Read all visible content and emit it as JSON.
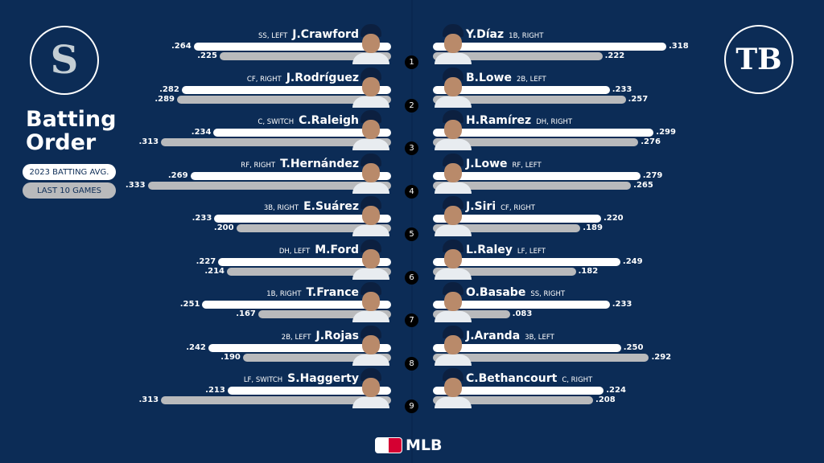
{
  "legend": {
    "season": "2023 BATTING AVG.",
    "recent": "LAST 10 GAMES"
  },
  "title": [
    "Batting",
    "Order"
  ],
  "footer": "MLB",
  "logos": {
    "home": "Seattle Mariners S logo",
    "away": "TB"
  },
  "colors": {
    "background": "#0c2c56",
    "season_bar": "#ffffff",
    "recent_bar": "#b9babc"
  },
  "chart_data": {
    "type": "bar",
    "series_labels": [
      "2023 BATTING AVG.",
      "LAST 10 GAMES"
    ],
    "home": [
      {
        "order": "1",
        "name": "J.Crawford",
        "pos": "SS, LEFT",
        "avg": ".264",
        "last10": ".225"
      },
      {
        "order": "2",
        "name": "J.Rodríguez",
        "pos": "CF, RIGHT",
        "avg": ".282",
        "last10": ".289"
      },
      {
        "order": "3",
        "name": "C.Raleigh",
        "pos": "C, SWITCH",
        "avg": ".234",
        "last10": ".313"
      },
      {
        "order": "4",
        "name": "T.Hernández",
        "pos": "RF, RIGHT",
        "avg": ".269",
        "last10": ".333"
      },
      {
        "order": "5",
        "name": "E.Suárez",
        "pos": "3B, RIGHT",
        "avg": ".233",
        "last10": ".200"
      },
      {
        "order": "6",
        "name": "M.Ford",
        "pos": "DH, LEFT",
        "avg": ".227",
        "last10": ".214"
      },
      {
        "order": "7",
        "name": "T.France",
        "pos": "1B, RIGHT",
        "avg": ".251",
        "last10": ".167"
      },
      {
        "order": "8",
        "name": "J.Rojas",
        "pos": "2B, LEFT",
        "avg": ".242",
        "last10": ".190"
      },
      {
        "order": "9",
        "name": "S.Haggerty",
        "pos": "LF, SWITCH",
        "avg": ".213",
        "last10": ".313"
      }
    ],
    "away": [
      {
        "name": "Y.Díaz",
        "pos": "1B, RIGHT",
        "avg": ".318",
        "last10": ".222"
      },
      {
        "name": "B.Lowe",
        "pos": "2B, LEFT",
        "avg": ".233",
        "last10": ".257"
      },
      {
        "name": "H.Ramírez",
        "pos": "DH, RIGHT",
        "avg": ".299",
        "last10": ".276"
      },
      {
        "name": "J.Lowe",
        "pos": "RF, LEFT",
        "avg": ".279",
        "last10": ".265"
      },
      {
        "name": "J.Siri",
        "pos": "CF, RIGHT",
        "avg": ".220",
        "last10": ".189"
      },
      {
        "name": "L.Raley",
        "pos": "LF, LEFT",
        "avg": ".249",
        "last10": ".182"
      },
      {
        "name": "O.Basabe",
        "pos": "SS, RIGHT",
        "avg": ".233",
        "last10": ".083"
      },
      {
        "name": "J.Aranda",
        "pos": "3B, LEFT",
        "avg": ".250",
        "last10": ".292"
      },
      {
        "name": "C.Bethancourt",
        "pos": "C, RIGHT",
        "avg": ".224",
        "last10": ".208"
      }
    ]
  }
}
